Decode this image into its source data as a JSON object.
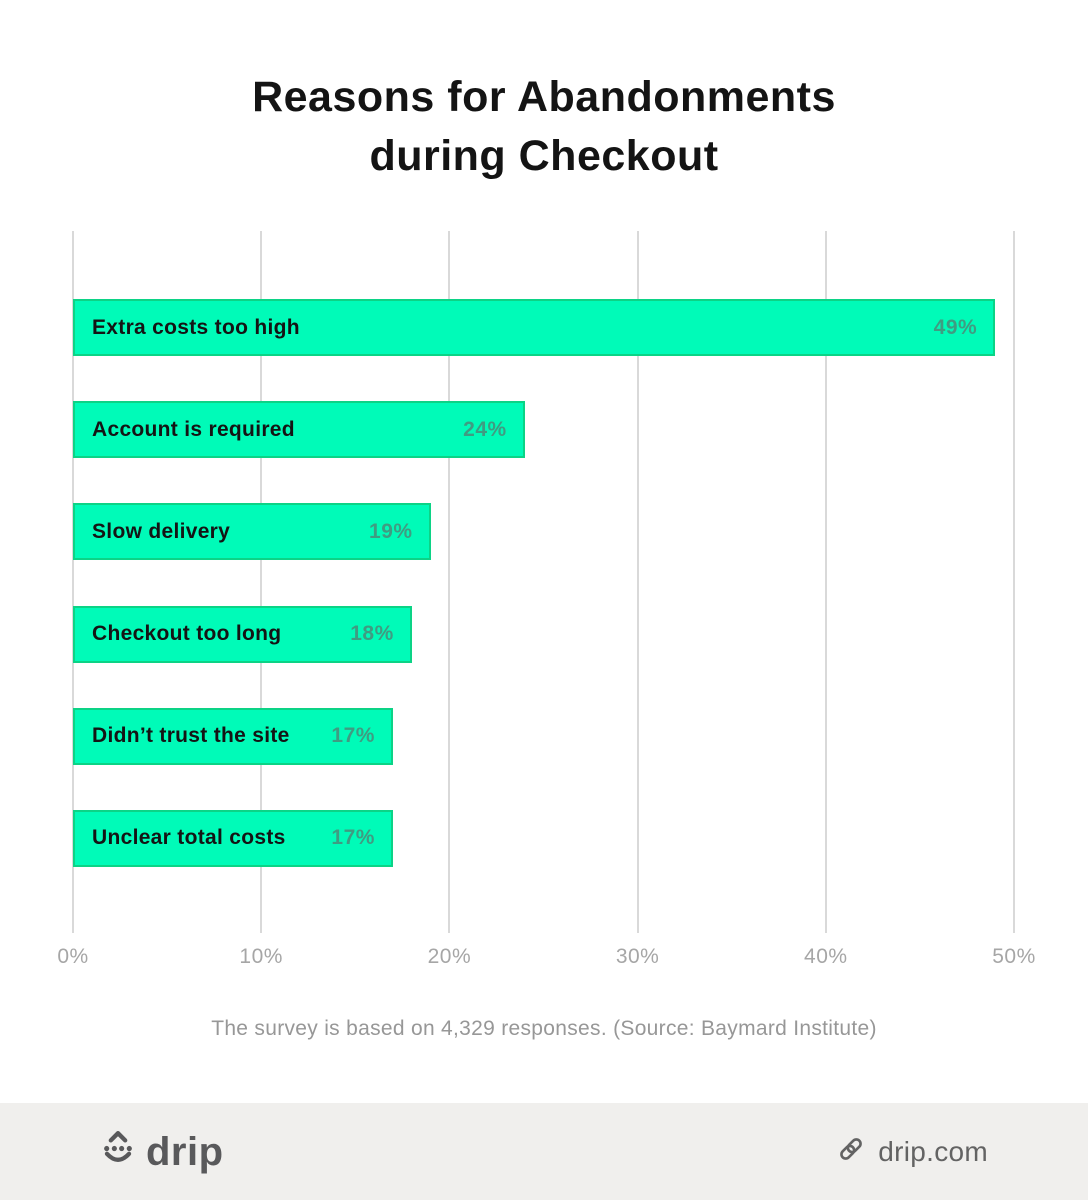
{
  "title": {
    "line1": "Reasons for Abandonments",
    "line2": "during Checkout"
  },
  "chart_data": {
    "type": "bar",
    "orientation": "horizontal",
    "title": "Reasons for Abandonments during Checkout",
    "categories": [
      "Extra costs too high",
      "Account is required",
      "Slow delivery",
      "Checkout too long",
      "Didn’t trust the site",
      "Unclear total costs"
    ],
    "values": [
      49,
      24,
      19,
      18,
      17,
      17
    ],
    "value_labels": [
      "49%",
      "24%",
      "19%",
      "18%",
      "17%",
      "17%"
    ],
    "x_ticks": [
      "0%",
      "10%",
      "20%",
      "30%",
      "40%",
      "50%"
    ],
    "xlim": [
      0,
      50
    ],
    "xmax": 50,
    "xlabel": "",
    "ylabel": "",
    "grid": "vertical-only",
    "legend": "none",
    "bar_color": "#00fbb8",
    "bar_border_color": "#0cd386",
    "value_label_color": "#3f9c82",
    "gridline_color": "#d9d9d9"
  },
  "caption": "The survey is based on 4,329 responses. (Source: Baymard Institute)",
  "footer": {
    "brand": "drip",
    "site": "drip.com"
  }
}
